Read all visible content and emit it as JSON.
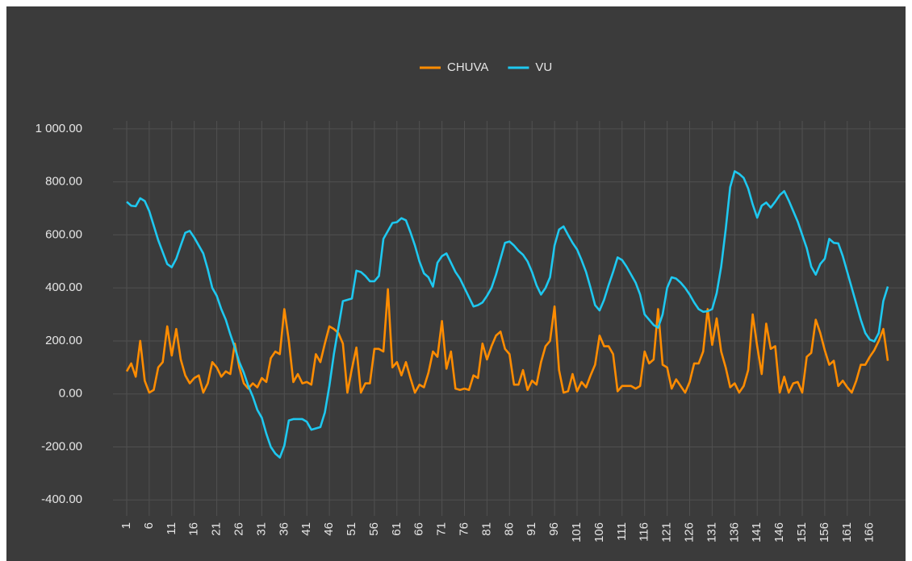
{
  "chart_data": {
    "type": "line",
    "categories": [
      "1",
      null,
      null,
      null,
      null,
      "6",
      null,
      null,
      null,
      null,
      "11",
      null,
      null,
      null,
      null,
      "16",
      null,
      null,
      null,
      null,
      "21",
      null,
      null,
      null,
      null,
      "26",
      null,
      null,
      null,
      null,
      "31",
      null,
      null,
      null,
      null,
      "36",
      null,
      null,
      null,
      null,
      "41",
      null,
      null,
      null,
      null,
      "46",
      null,
      null,
      null,
      null,
      "51",
      null,
      null,
      null,
      null,
      "56",
      null,
      null,
      null,
      null,
      "61",
      null,
      null,
      null,
      null,
      "66",
      null,
      null,
      null,
      null,
      "71",
      null,
      null,
      null,
      null,
      "76",
      null,
      null,
      null,
      null,
      "81",
      null,
      null,
      null,
      null,
      "86",
      null,
      null,
      null,
      null,
      "91",
      null,
      null,
      null,
      null,
      "96",
      null,
      null,
      null,
      null,
      "101",
      null,
      null,
      null,
      null,
      "106",
      null,
      null,
      null,
      null,
      "111",
      null,
      null,
      null,
      null,
      "116",
      null,
      null,
      null,
      null,
      "121",
      null,
      null,
      null,
      null,
      "126",
      null,
      null,
      null,
      null,
      "131",
      null,
      null,
      null,
      null,
      "136",
      null,
      null,
      null,
      null,
      "141",
      null,
      null,
      null,
      null,
      "146",
      null,
      null,
      null,
      null,
      "151",
      null,
      null,
      null,
      null,
      "156",
      null,
      null,
      null,
      null,
      "161",
      null,
      null,
      null,
      null,
      "166",
      null,
      null,
      null,
      null
    ],
    "series": [
      {
        "name": "CHUVA",
        "color": "#ff8c00",
        "values": [
          85,
          115,
          65,
          200,
          50,
          5,
          15,
          100,
          120,
          255,
          145,
          245,
          130,
          70,
          40,
          60,
          70,
          5,
          40,
          120,
          100,
          65,
          85,
          75,
          190,
          100,
          40,
          20,
          40,
          25,
          60,
          45,
          135,
          160,
          150,
          320,
          200,
          45,
          75,
          40,
          45,
          35,
          150,
          120,
          190,
          255,
          245,
          230,
          190,
          5,
          95,
          175,
          5,
          40,
          40,
          170,
          170,
          160,
          395,
          100,
          120,
          70,
          120,
          60,
          5,
          35,
          25,
          80,
          160,
          140,
          275,
          95,
          160,
          20,
          15,
          20,
          15,
          70,
          60,
          190,
          130,
          180,
          220,
          235,
          170,
          150,
          35,
          35,
          90,
          15,
          50,
          35,
          120,
          180,
          200,
          330,
          90,
          5,
          10,
          75,
          10,
          45,
          25,
          70,
          110,
          220,
          180,
          180,
          150,
          10,
          30,
          30,
          30,
          20,
          30,
          160,
          115,
          130,
          320,
          110,
          100,
          20,
          55,
          30,
          5,
          45,
          115,
          115,
          160,
          320,
          185,
          285,
          160,
          100,
          25,
          40,
          5,
          30,
          90,
          300,
          180,
          75,
          265,
          170,
          180,
          5,
          65,
          5,
          40,
          45,
          5,
          140,
          155,
          280,
          230,
          165,
          110,
          125,
          30,
          50,
          25,
          5,
          50,
          110,
          110,
          140,
          165,
          200,
          245,
          125
        ]
      },
      {
        "name": "VU",
        "color": "#1ec8f0",
        "values": [
          725,
          710,
          708,
          738,
          728,
          690,
          635,
          580,
          535,
          490,
          478,
          510,
          560,
          608,
          615,
          590,
          560,
          530,
          470,
          400,
          370,
          320,
          280,
          225,
          175,
          120,
          80,
          30,
          -10,
          -60,
          -90,
          -150,
          -200,
          -225,
          -240,
          -195,
          -100,
          -95,
          -95,
          -95,
          -105,
          -135,
          -130,
          -125,
          -70,
          30,
          150,
          250,
          350,
          355,
          360,
          465,
          460,
          445,
          425,
          425,
          445,
          585,
          615,
          645,
          648,
          663,
          655,
          610,
          560,
          500,
          455,
          440,
          405,
          495,
          520,
          530,
          495,
          460,
          435,
          400,
          365,
          330,
          335,
          345,
          370,
          400,
          450,
          510,
          570,
          575,
          560,
          540,
          525,
          500,
          460,
          410,
          375,
          400,
          440,
          560,
          620,
          632,
          600,
          570,
          545,
          505,
          460,
          400,
          335,
          315,
          355,
          410,
          460,
          515,
          505,
          480,
          450,
          420,
          375,
          300,
          280,
          260,
          250,
          300,
          400,
          440,
          435,
          420,
          400,
          375,
          345,
          320,
          310,
          312,
          320,
          380,
          480,
          620,
          780,
          840,
          830,
          815,
          775,
          715,
          665,
          710,
          722,
          703,
          725,
          750,
          765,
          730,
          690,
          650,
          600,
          550,
          480,
          450,
          490,
          510,
          585,
          570,
          568,
          520,
          460,
          400,
          340,
          280,
          230,
          205,
          198,
          230,
          350,
          405
        ]
      }
    ],
    "ylim": [
      -460,
      1030
    ],
    "yticks": [
      {
        "value": -400,
        "label": "-400.00"
      },
      {
        "value": -200,
        "label": "-200.00"
      },
      {
        "value": 0,
        "label": "0.00"
      },
      {
        "value": 200,
        "label": "200.00"
      },
      {
        "value": 400,
        "label": "400.00"
      },
      {
        "value": 600,
        "label": "600.00"
      },
      {
        "value": 800,
        "label": "800.00"
      },
      {
        "value": 1000,
        "label": "1 000.00"
      }
    ],
    "grid": true,
    "legend": "top"
  }
}
